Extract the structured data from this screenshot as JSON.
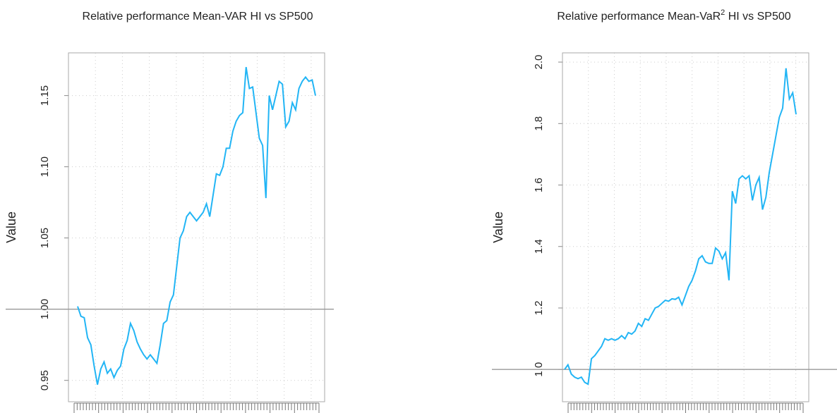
{
  "chart_data": [
    {
      "type": "line",
      "title": "Relative performance Mean-VAR HI vs SP500",
      "ylabel": "Value",
      "ylim": [
        0.935,
        1.18
      ],
      "yticks": [
        0.95,
        {
          "value": 1,
          "label": "1.00"
        },
        1.05,
        {
          "value": 1.1,
          "label": "1.10"
        },
        1.15
      ],
      "grid": true,
      "hline": 1,
      "series": [
        {
          "color": "#22b5f5",
          "values": [
            1.002,
            0.995,
            0.994,
            0.98,
            0.975,
            0.96,
            0.947,
            0.958,
            0.963,
            0.955,
            0.958,
            0.952,
            0.957,
            0.96,
            0.972,
            0.978,
            0.99,
            0.985,
            0.977,
            0.972,
            0.968,
            0.965,
            0.968,
            0.965,
            0.962,
            0.975,
            0.99,
            0.992,
            1.005,
            1.01,
            1.03,
            1.05,
            1.055,
            1.065,
            1.068,
            1.065,
            1.062,
            1.065,
            1.068,
            1.074,
            1.065,
            1.08,
            1.095,
            1.094,
            1.1,
            1.113,
            1.113,
            1.125,
            1.132,
            1.136,
            1.138,
            1.17,
            1.155,
            1.156,
            1.138,
            1.12,
            1.115,
            1.078,
            1.15,
            1.14,
            1.15,
            1.16,
            1.158,
            1.128,
            1.132,
            1.145,
            1.14,
            1.155,
            1.16,
            1.163,
            1.16,
            1.161,
            1.15
          ]
        }
      ]
    },
    {
      "type": "line",
      "title": [
        "Relative performance Mean-VaR",
        "2",
        "  HI vs SP500"
      ],
      "ylabel": "Value",
      "ylim": [
        0.895,
        2.03
      ],
      "yticks": [
        {
          "value": 1,
          "label": "1.0"
        },
        1.2,
        1.4,
        1.6,
        1.8,
        {
          "value": 2,
          "label": "2.0"
        }
      ],
      "grid": true,
      "hline": 1,
      "series": [
        {
          "color": "#22b5f5",
          "values": [
            1.0,
            1.015,
            0.985,
            0.975,
            0.97,
            0.975,
            0.958,
            0.952,
            1.035,
            1.045,
            1.06,
            1.075,
            1.1,
            1.095,
            1.1,
            1.095,
            1.1,
            1.11,
            1.1,
            1.12,
            1.115,
            1.125,
            1.15,
            1.14,
            1.165,
            1.16,
            1.18,
            1.2,
            1.205,
            1.215,
            1.225,
            1.222,
            1.23,
            1.228,
            1.235,
            1.21,
            1.24,
            1.27,
            1.29,
            1.32,
            1.36,
            1.37,
            1.35,
            1.345,
            1.345,
            1.395,
            1.385,
            1.36,
            1.38,
            1.29,
            1.58,
            1.54,
            1.62,
            1.63,
            1.62,
            1.63,
            1.55,
            1.6,
            1.625,
            1.52,
            1.56,
            1.64,
            1.7,
            1.76,
            1.82,
            1.85,
            1.98,
            1.88,
            1.9,
            1.83
          ]
        }
      ]
    }
  ]
}
